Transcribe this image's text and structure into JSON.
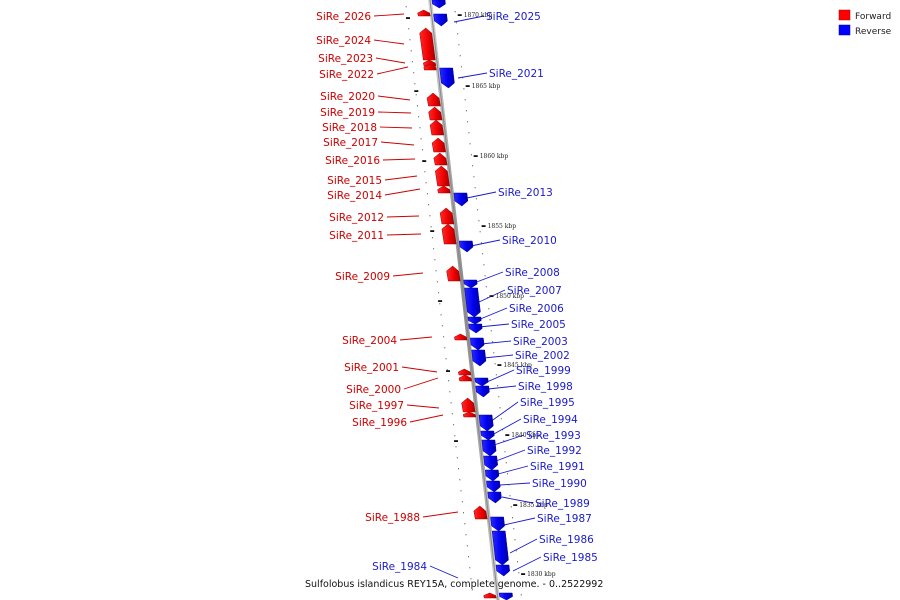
{
  "caption": "Sulfolobus islandicus REY15A, complete genome. - 0..2522992",
  "legend": [
    {
      "label": "Forward",
      "color": "#ff0000"
    },
    {
      "label": "Reverse",
      "color": "#0000ff"
    }
  ],
  "colors": {
    "forward": "#ff0000",
    "reverse": "#0000ff",
    "backbone": "#999999"
  },
  "ticks": [
    "1870 kbp",
    "1865 kbp",
    "1860 kbp",
    "1855 kbp",
    "1850 kbp",
    "1845 kbp",
    "1840 kbp",
    "1835 kbp",
    "1830 kbp"
  ],
  "forward_genes": [
    "SiRe_2026",
    "SiRe_2024",
    "SiRe_2023",
    "SiRe_2022",
    "SiRe_2020",
    "SiRe_2019",
    "SiRe_2018",
    "SiRe_2017",
    "SiRe_2016",
    "SiRe_2015",
    "SiRe_2014",
    "SiRe_2012",
    "SiRe_2011",
    "SiRe_2009",
    "SiRe_2004",
    "SiRe_2001",
    "SiRe_2000",
    "SiRe_1997",
    "SiRe_1996",
    "SiRe_1988"
  ],
  "reverse_genes": [
    "SiRe_2025",
    "SiRe_2021",
    "SiRe_2013",
    "SiRe_2010",
    "SiRe_2008",
    "SiRe_2007",
    "SiRe_2006",
    "SiRe_2005",
    "SiRe_2003",
    "SiRe_2002",
    "SiRe_1999",
    "SiRe_1998",
    "SiRe_1995",
    "SiRe_1994",
    "SiRe_1993",
    "SiRe_1992",
    "SiRe_1991",
    "SiRe_1990",
    "SiRe_1989",
    "SiRe_1987",
    "SiRe_1986",
    "SiRe_1985",
    "SiRe_1984"
  ]
}
